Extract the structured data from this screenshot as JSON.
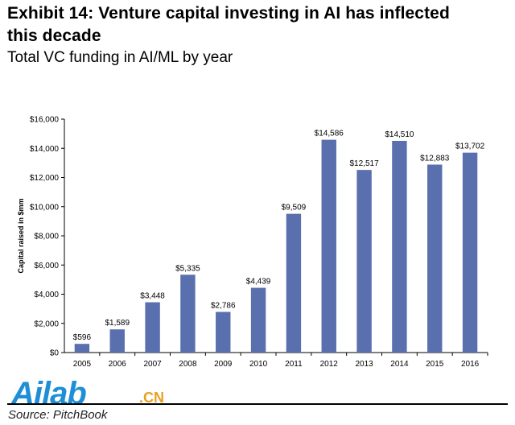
{
  "header": {
    "title_line1": "Exhibit 14: Venture capital investing in AI has inflected",
    "title_line2": "this decade",
    "subtitle": "Total VC funding in AI/ML by year"
  },
  "footer": {
    "source": "Source: PitchBook",
    "watermark_text": "Ailab",
    "watermark_suffix": ".CN"
  },
  "colors": {
    "bar": "#5a6fad",
    "axis": "#000000",
    "watermark_blue": "#1e8fd6",
    "watermark_orange": "#e8a020"
  },
  "chart_data": {
    "type": "bar",
    "title": "",
    "xlabel": "",
    "ylabel": "Capital raised in $mm",
    "categories": [
      "2005",
      "2006",
      "2007",
      "2008",
      "2009",
      "2010",
      "2011",
      "2012",
      "2013",
      "2014",
      "2015",
      "2016"
    ],
    "values": [
      596,
      1589,
      3448,
      5335,
      2786,
      4439,
      9509,
      14586,
      12517,
      14510,
      12883,
      13702
    ],
    "data_labels": [
      "$596",
      "$1,589",
      "$3,448",
      "$5,335",
      "$2,786",
      "$4,439",
      "$9,509",
      "$14,586",
      "$12,517",
      "$14,510",
      "$12,883",
      "$13,702"
    ],
    "ylim": [
      0,
      16000
    ],
    "yticks": [
      0,
      2000,
      4000,
      6000,
      8000,
      10000,
      12000,
      14000,
      16000
    ],
    "ytick_labels": [
      "$0",
      "$2,000",
      "$4,000",
      "$6,000",
      "$8,000",
      "$10,000",
      "$12,000",
      "$14,000",
      "$16,000"
    ],
    "grid": false,
    "legend": "none"
  }
}
